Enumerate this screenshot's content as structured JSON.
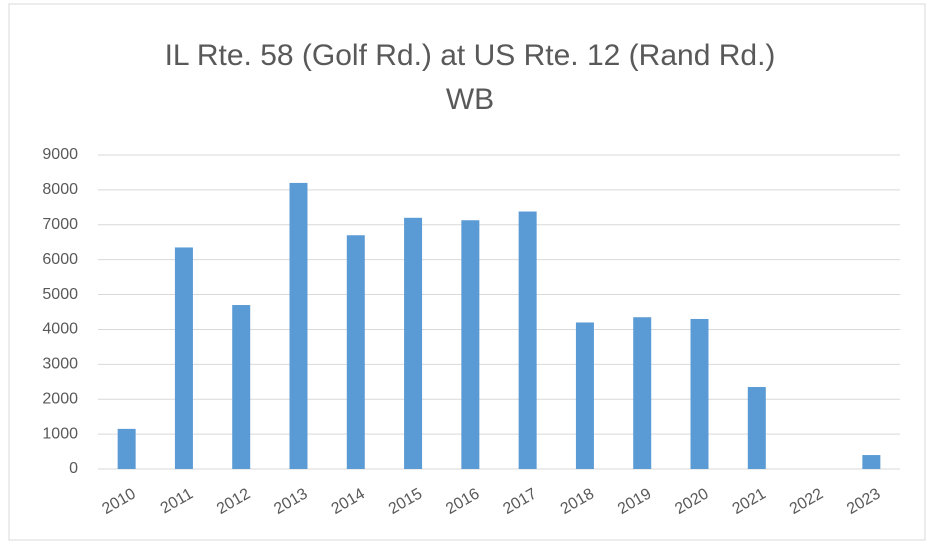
{
  "chart_data": {
    "type": "bar",
    "title": [
      "IL Rte. 58 (Golf Rd.) at US Rte. 12 (Rand Rd.)",
      "WB"
    ],
    "categories": [
      "2010",
      "2011",
      "2012",
      "2013",
      "2014",
      "2015",
      "2016",
      "2017",
      "2018",
      "2019",
      "2020",
      "2021",
      "2022",
      "2023"
    ],
    "values": [
      1150,
      6350,
      4700,
      8200,
      6700,
      7200,
      7130,
      7380,
      4200,
      4350,
      4300,
      2350,
      0,
      400
    ],
    "color": "#5b9bd5",
    "ylim": [
      0,
      9000
    ],
    "yticks": [
      0,
      1000,
      2000,
      3000,
      4000,
      5000,
      6000,
      7000,
      8000,
      9000
    ],
    "grid": true
  }
}
